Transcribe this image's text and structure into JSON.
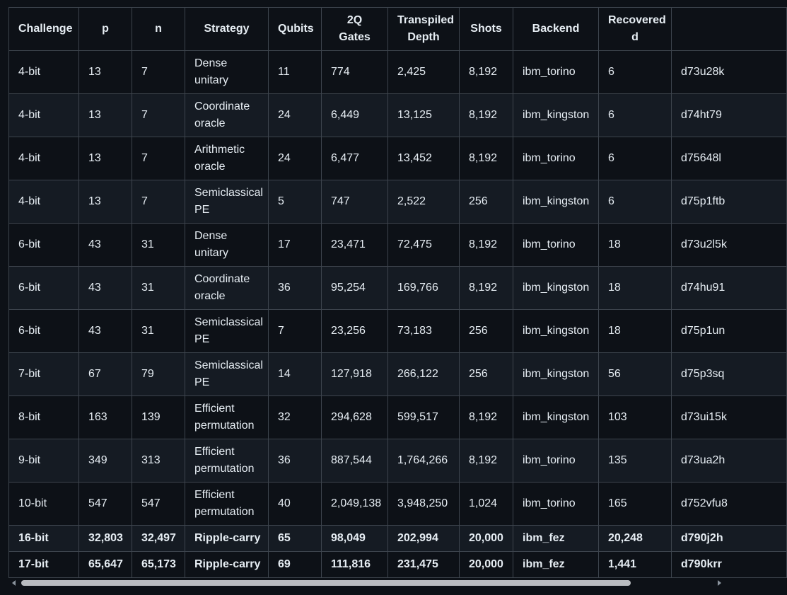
{
  "table": {
    "headers": [
      "Challenge",
      "p",
      "n",
      "Strategy",
      "Qubits",
      "2Q Gates",
      "Transpiled Depth",
      "Shots",
      "Backend",
      "Recovered d",
      ""
    ],
    "rows": [
      [
        "4-bit",
        "13",
        "7",
        "Dense unitary",
        "11",
        "774",
        "2,425",
        "8,192",
        "ibm_torino",
        "6",
        "d73u28k"
      ],
      [
        "4-bit",
        "13",
        "7",
        "Coordinate oracle",
        "24",
        "6,449",
        "13,125",
        "8,192",
        "ibm_kingston",
        "6",
        "d74ht79"
      ],
      [
        "4-bit",
        "13",
        "7",
        "Arithmetic oracle",
        "24",
        "6,477",
        "13,452",
        "8,192",
        "ibm_torino",
        "6",
        "d75648l"
      ],
      [
        "4-bit",
        "13",
        "7",
        "Semiclassical PE",
        "5",
        "747",
        "2,522",
        "256",
        "ibm_kingston",
        "6",
        "d75p1ftb"
      ],
      [
        "6-bit",
        "43",
        "31",
        "Dense unitary",
        "17",
        "23,471",
        "72,475",
        "8,192",
        "ibm_torino",
        "18",
        "d73u2l5k"
      ],
      [
        "6-bit",
        "43",
        "31",
        "Coordinate oracle",
        "36",
        "95,254",
        "169,766",
        "8,192",
        "ibm_kingston",
        "18",
        "d74hu91"
      ],
      [
        "6-bit",
        "43",
        "31",
        "Semiclassical PE",
        "7",
        "23,256",
        "73,183",
        "256",
        "ibm_kingston",
        "18",
        "d75p1un"
      ],
      [
        "7-bit",
        "67",
        "79",
        "Semiclassical PE",
        "14",
        "127,918",
        "266,122",
        "256",
        "ibm_kingston",
        "56",
        "d75p3sq"
      ],
      [
        "8-bit",
        "163",
        "139",
        "Efficient permutation",
        "32",
        "294,628",
        "599,517",
        "8,192",
        "ibm_kingston",
        "103",
        "d73ui15k"
      ],
      [
        "9-bit",
        "349",
        "313",
        "Efficient permutation",
        "36",
        "887,544",
        "1,764,266",
        "8,192",
        "ibm_torino",
        "135",
        "d73ua2h"
      ],
      [
        "10-bit",
        "547",
        "547",
        "Efficient permutation",
        "40",
        "2,049,138",
        "3,948,250",
        "1,024",
        "ibm_torino",
        "165",
        "d752vfu8"
      ],
      [
        "16-bit",
        "32,803",
        "32,497",
        "Ripple-carry",
        "65",
        "98,049",
        "202,994",
        "20,000",
        "ibm_fez",
        "20,248",
        "d790j2h"
      ],
      [
        "17-bit",
        "65,647",
        "65,173",
        "Ripple-carry",
        "69",
        "111,816",
        "231,475",
        "20,000",
        "ibm_fez",
        "1,441",
        "d790krr"
      ]
    ]
  },
  "scrollbar": {
    "left_arrow_icon": "triangle-left",
    "right_arrow_icon": "triangle-right",
    "thumb_fraction": 0.86
  }
}
